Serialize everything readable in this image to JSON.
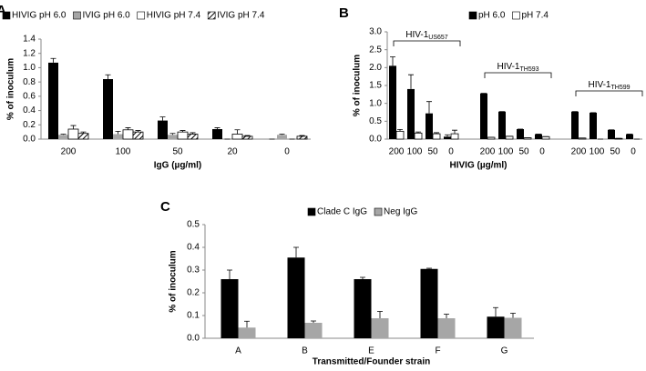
{
  "chart_data": [
    {
      "type": "bar",
      "panel_label": "A",
      "y_label": "% of inoculum",
      "x_label": "IgG (µg/ml)",
      "categories": [
        "200",
        "100",
        "50",
        "20",
        "0"
      ],
      "ylim": [
        0,
        1.4
      ],
      "yticks": [
        {
          "value": 0,
          "label": "0.0"
        },
        0.2,
        0.4,
        0.6,
        0.8,
        {
          "value": 1,
          "label": "1.0"
        },
        1.2,
        1.4
      ],
      "series": [
        {
          "name": "HIVIG pH 6.0",
          "color": "#000000",
          "values": [
            1.07,
            0.84,
            0.26,
            0.14,
            0
          ],
          "errors": [
            0.06,
            0.06,
            0.05,
            0.02,
            0
          ]
        },
        {
          "name": "IVIG pH 6.0",
          "color": "#a6a6a6",
          "values": [
            0.06,
            0.07,
            0.06,
            0,
            0.06
          ],
          "errors": [
            0.01,
            0.04,
            0.02,
            0,
            0.01
          ]
        },
        {
          "name": "HIVIG pH 7.4",
          "color": "#ffffff",
          "values": [
            0.14,
            0.13,
            0.1,
            0.07,
            0
          ],
          "errors": [
            0.05,
            0.03,
            0.02,
            0.06,
            0
          ]
        },
        {
          "name": "IVIG pH 7.4",
          "color": "#ffffff",
          "pattern": "hatch",
          "values": [
            0.08,
            0.1,
            0.07,
            0.04,
            0.04
          ],
          "errors": [
            0.02,
            0.02,
            0.02,
            0.01,
            0.01
          ]
        }
      ]
    },
    {
      "type": "bar",
      "panel_label": "B",
      "y_label": "% of inoculum",
      "x_label": "HIVIG (µg/ml)",
      "categories": [
        "200",
        "100",
        "50",
        "0",
        "200",
        "100",
        "50",
        "0",
        "200",
        "100",
        "50",
        "0"
      ],
      "groups": [
        {
          "label": "HIV-1",
          "sub": "US657"
        },
        {
          "label": "HIV-1",
          "sub": "TH593"
        },
        {
          "label": "HIV-1",
          "sub": "TH599"
        }
      ],
      "ylim": [
        0,
        3
      ],
      "yticks": [
        {
          "value": 0,
          "label": "0.0"
        },
        0.5,
        {
          "value": 1,
          "label": "1.0"
        },
        1.5,
        {
          "value": 2,
          "label": "2.0"
        },
        2.5,
        {
          "value": 3,
          "label": "3.0"
        }
      ],
      "series": [
        {
          "name": "pH 6.0",
          "color": "#000000",
          "values": [
            2.05,
            1.4,
            0.72,
            0.07,
            1.28,
            0.77,
            0.28,
            0.14,
            0.77,
            0.74,
            0.26,
            0.14
          ],
          "errors": [
            0.25,
            0.4,
            0.33,
            0.05,
            0,
            0,
            0,
            0,
            0,
            0,
            0,
            0
          ]
        },
        {
          "name": "pH 7.4",
          "color": "#ffffff",
          "values": [
            0.22,
            0.17,
            0.15,
            0.15,
            0.05,
            0.08,
            0.04,
            0.07,
            0.03,
            0,
            0.02,
            0
          ],
          "errors": [
            0.05,
            0.03,
            0.03,
            0.1,
            0,
            0,
            0,
            0,
            0,
            0,
            0,
            0
          ]
        }
      ]
    },
    {
      "type": "bar",
      "panel_label": "C",
      "y_label": "% of inoculum",
      "x_label": "Transmitted/Founder strain",
      "categories": [
        "A",
        "B",
        "E",
        "F",
        "G"
      ],
      "ylim": [
        0,
        0.5
      ],
      "yticks": [
        {
          "value": 0,
          "label": "0.0"
        },
        0.1,
        0.2,
        0.3,
        0.4,
        0.5
      ],
      "series": [
        {
          "name": "Clade C IgG",
          "color": "#000000",
          "values": [
            0.26,
            0.355,
            0.26,
            0.305,
            0.095
          ],
          "errors": [
            0.04,
            0.045,
            0.008,
            0.003,
            0.04
          ]
        },
        {
          "name": "Neg IgG",
          "color": "#a6a6a6",
          "values": [
            0.047,
            0.068,
            0.088,
            0.088,
            0.09
          ],
          "errors": [
            0.028,
            0.008,
            0.03,
            0.018,
            0.02
          ]
        }
      ]
    }
  ]
}
